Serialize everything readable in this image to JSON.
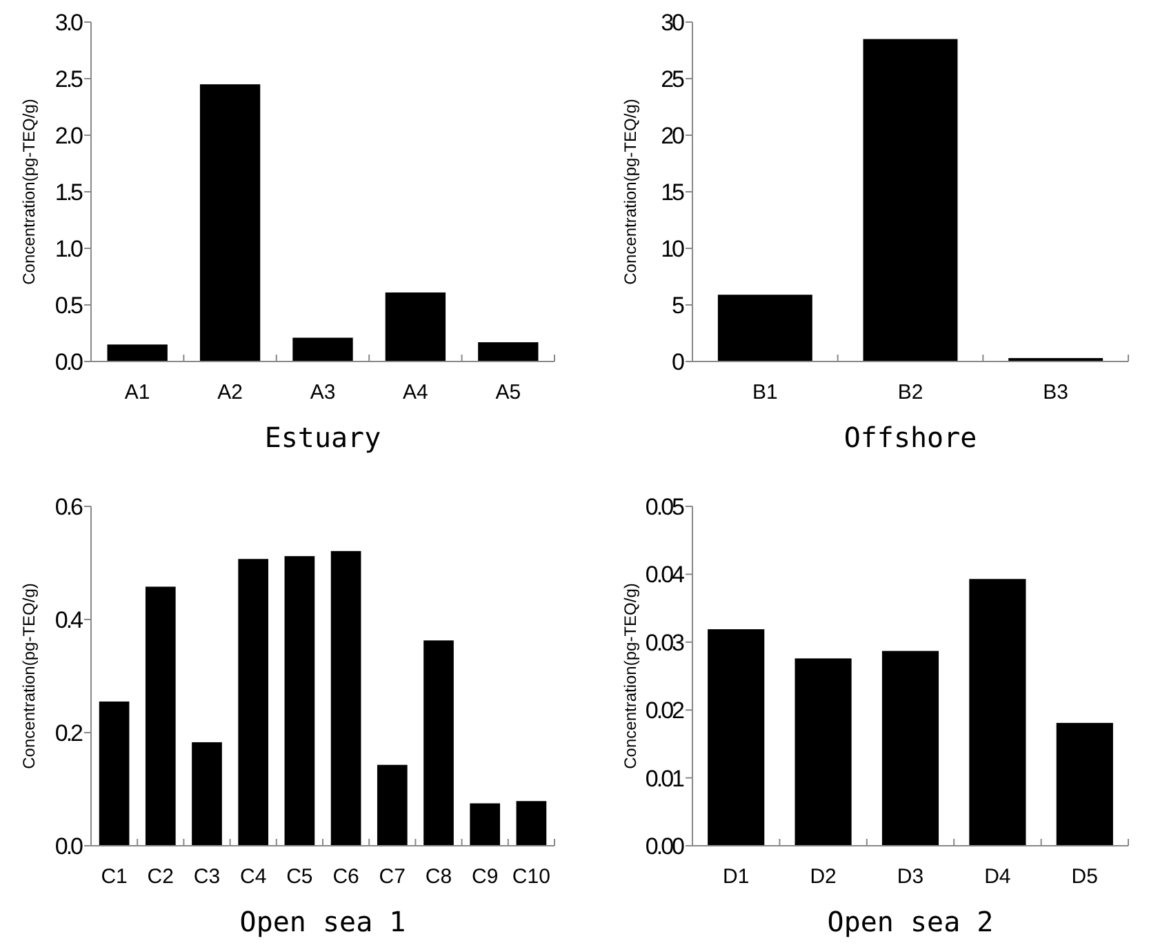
{
  "chart_data": [
    {
      "type": "bar",
      "xlabel": "Estuary",
      "ylabel": "Concentration(pg-TEQ/g)",
      "categories": [
        "A1",
        "A2",
        "A3",
        "A4",
        "A5"
      ],
      "values": [
        0.15,
        2.45,
        0.21,
        0.61,
        0.17
      ],
      "color": "#000000",
      "ylim": [
        0,
        3
      ],
      "yticks": [
        {
          "value": 0,
          "label": "0.0"
        },
        {
          "value": 0.5,
          "label": "0.5"
        },
        {
          "value": 1,
          "label": "1.0"
        },
        {
          "value": 1.5,
          "label": "1.5"
        },
        {
          "value": 2,
          "label": "2.0"
        },
        {
          "value": 2.5,
          "label": "2.5"
        },
        {
          "value": 3,
          "label": "3.0"
        }
      ],
      "grid": false
    },
    {
      "type": "bar",
      "xlabel": "Offshore",
      "ylabel": "Concentration(pg-TEQ/g)",
      "categories": [
        "B1",
        "B2",
        "B3"
      ],
      "values": [
        5.9,
        28.5,
        0.3
      ],
      "color": "#000000",
      "ylim": [
        0,
        30
      ],
      "yticks": [
        0,
        5,
        10,
        15,
        20,
        25,
        30
      ],
      "grid": false
    },
    {
      "type": "bar",
      "xlabel": "Open sea 1",
      "ylabel": "Concentration(pg-TEQ/g)",
      "categories": [
        "C1",
        "C2",
        "C3",
        "C4",
        "C5",
        "C6",
        "C7",
        "C8",
        "C9",
        "C10"
      ],
      "values": [
        0.255,
        0.458,
        0.183,
        0.507,
        0.512,
        0.521,
        0.143,
        0.363,
        0.075,
        0.079
      ],
      "color": "#000000",
      "ylim": [
        0,
        0.6
      ],
      "yticks": [
        {
          "value": 0,
          "label": "0.0"
        },
        {
          "value": 0.2,
          "label": "0.2"
        },
        {
          "value": 0.4,
          "label": "0.4"
        },
        {
          "value": 0.6,
          "label": "0.6"
        }
      ],
      "grid": false
    },
    {
      "type": "bar",
      "xlabel": "Open sea 2",
      "ylabel": "Concentration(pg-TEQ/g)",
      "categories": [
        "D1",
        "D2",
        "D3",
        "D4",
        "D5"
      ],
      "values": [
        0.0319,
        0.0276,
        0.0287,
        0.0393,
        0.0181
      ],
      "color": "#000000",
      "ylim": [
        0,
        0.05
      ],
      "yticks": [
        {
          "value": 0,
          "label": "0.00"
        },
        {
          "value": 0.01,
          "label": "0.01"
        },
        {
          "value": 0.02,
          "label": "0.02"
        },
        {
          "value": 0.03,
          "label": "0.03"
        },
        {
          "value": 0.04,
          "label": "0.04"
        },
        {
          "value": 0.05,
          "label": "0.05"
        }
      ],
      "grid": false
    }
  ]
}
